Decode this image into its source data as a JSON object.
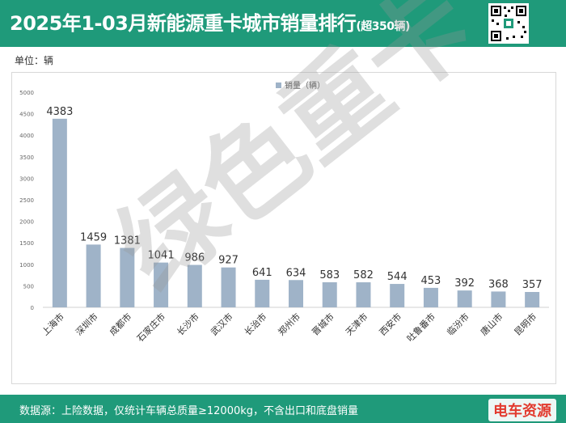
{
  "header": {
    "title": "2025年1-03月新能源重卡城市销量排行",
    "title_suffix": "(超350辆)"
  },
  "unit_label": "单位：辆",
  "watermark_text": "绿色重卡",
  "footer": {
    "note": "数据源：上险数据，仅统计车辆总质量≥12000kg，不含出口和底盘销量",
    "brand": "电车资源"
  },
  "colors": {
    "header_bg": "#1f9a7a",
    "bar": "#9fb3c8",
    "brand": "#e23a2e"
  },
  "chart_data": {
    "type": "bar",
    "title": "",
    "xlabel": "",
    "ylabel": "",
    "legend": "销量（辆）",
    "legend_position": "top-center",
    "categories": [
      "上海市",
      "深圳市",
      "成都市",
      "石家庄市",
      "长沙市",
      "武汉市",
      "长治市",
      "郑州市",
      "晋城市",
      "天津市",
      "西安市",
      "吐鲁番市",
      "临汾市",
      "唐山市",
      "昆明市"
    ],
    "values": [
      4383,
      1459,
      1381,
      1041,
      986,
      927,
      641,
      634,
      583,
      582,
      544,
      453,
      392,
      368,
      357
    ],
    "ylim": [
      0,
      5000
    ],
    "yticks": [
      0,
      500,
      1000,
      1500,
      2000,
      2500,
      3000,
      3500,
      4000,
      4500,
      5000
    ],
    "grid": false,
    "data_labels": true
  }
}
